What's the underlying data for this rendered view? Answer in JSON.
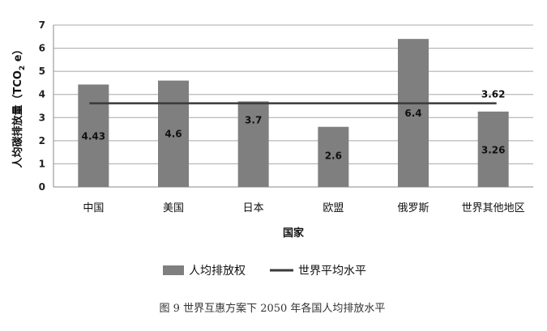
{
  "chart_data": {
    "type": "bar",
    "categories": [
      "中国",
      "美国",
      "日本",
      "欧盟",
      "俄罗斯",
      "世界其他地区"
    ],
    "series": [
      {
        "name": "人均排放权",
        "values": [
          4.43,
          4.6,
          3.7,
          2.6,
          6.4,
          3.26
        ],
        "labels": [
          "4.43",
          "4.6",
          "3.7",
          "2.6",
          "6.4",
          "3.26"
        ],
        "color": "#7f7f7f"
      },
      {
        "name": "世界平均水平",
        "type": "line",
        "value": 3.62,
        "label": "3.62",
        "color": "#3a3a3a"
      }
    ],
    "xlabel": "国家",
    "ylabel_main": "人均碳排放量（TCO",
    "ylabel_sub": "2",
    "ylabel_end": " e）",
    "ylim": [
      0,
      7
    ],
    "yticks": [
      0,
      1,
      2,
      3,
      4,
      5,
      6,
      7
    ],
    "grid": "horizontal",
    "legend_position": "bottom"
  },
  "caption": "图 9  世界互惠方案下 2050 年各国人均排放水平"
}
